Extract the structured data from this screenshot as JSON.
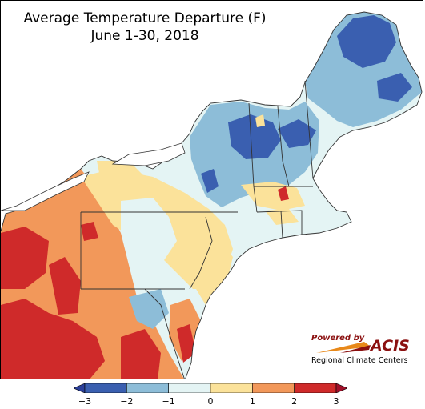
{
  "map": {
    "title_line1": "Average Temperature Departure (F)",
    "title_line2": "June 1-30, 2018"
  },
  "logo": {
    "powered_by": "Powered by",
    "brand": "ACIS",
    "tagline": "Regional Climate Centers",
    "brand_color": "#8b1010",
    "accent_color": "#e8891a"
  },
  "legend": {
    "tick_labels": [
      "−3",
      "−2",
      "−1",
      "0",
      "1",
      "2",
      "3"
    ],
    "bins": [
      {
        "range": [
          -3,
          -2
        ],
        "color": "#3a5fb0"
      },
      {
        "range": [
          -2,
          -1
        ],
        "color": "#8dbdd8"
      },
      {
        "range": [
          -1,
          0
        ],
        "color": "#e4f4f4"
      },
      {
        "range": [
          0,
          1
        ],
        "color": "#fbe29a"
      },
      {
        "range": [
          1,
          2
        ],
        "color": "#f2985a"
      },
      {
        "range": [
          2,
          3
        ],
        "color": "#cf2a2a"
      }
    ],
    "under_color": "#2b3f9a",
    "over_color": "#a0102a"
  },
  "colors": {
    "water": "#ffffff",
    "border": "#333333"
  }
}
